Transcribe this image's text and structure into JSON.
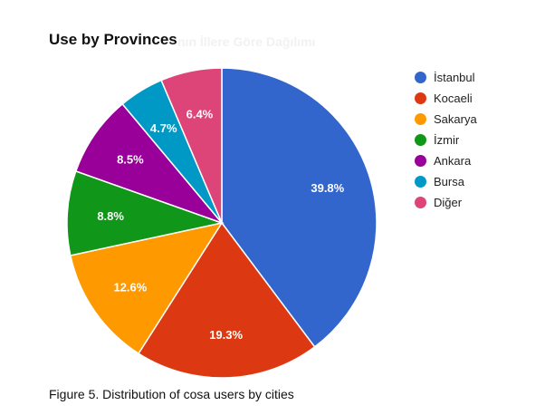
{
  "chart_data": {
    "type": "pie",
    "title": "Use by Provinces",
    "ghost_title": "nın İllere Göre Dağılımı",
    "caption": "Figure 5. Distribution of cosa users by cities",
    "legend_position": "right",
    "slices": [
      {
        "label": "İstanbul",
        "value": 39.8,
        "display": "39.8%",
        "color": "#3366cc"
      },
      {
        "label": "Kocaeli",
        "value": 19.3,
        "display": "19.3%",
        "color": "#dc3912"
      },
      {
        "label": "Sakarya",
        "value": 12.6,
        "display": "12.6%",
        "color": "#ff9900"
      },
      {
        "label": "İzmir",
        "value": 8.8,
        "display": "8.8%",
        "color": "#109618"
      },
      {
        "label": "Ankara",
        "value": 8.5,
        "display": "8.5%",
        "color": "#990099"
      },
      {
        "label": "Bursa",
        "value": 4.7,
        "display": "4.7%",
        "color": "#0099c6"
      },
      {
        "label": "Diğer",
        "value": 6.4,
        "display": "6.4%",
        "color": "#dd4477"
      }
    ]
  }
}
